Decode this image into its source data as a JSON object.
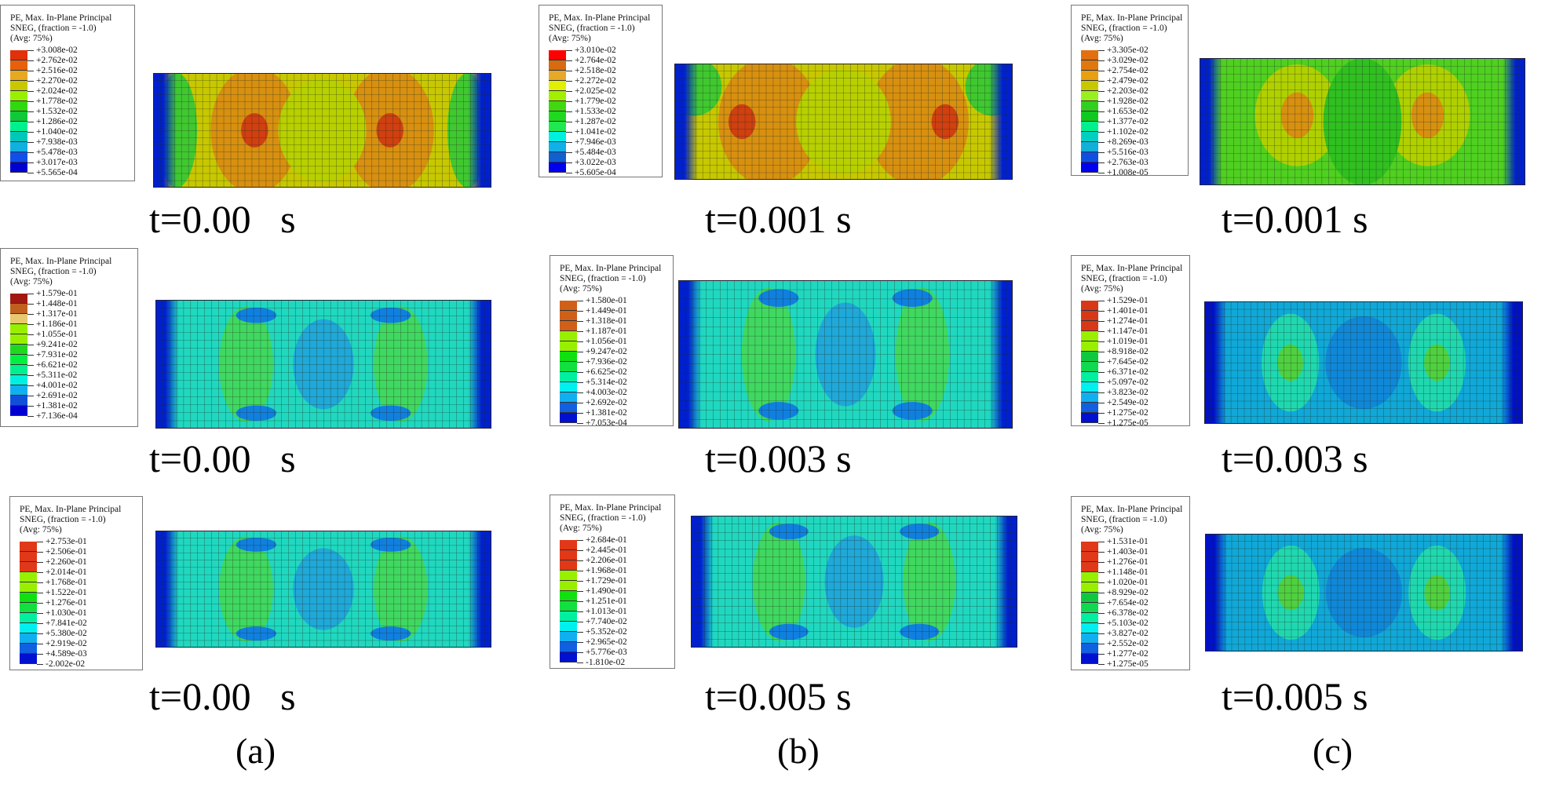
{
  "legend_title_lines": [
    "PE, Max. In-Plane Principal",
    "SNEG, (fraction = -1.0)",
    "(Avg: 75%)"
  ],
  "column_labels": [
    "(a)",
    "(b)",
    "(c)"
  ],
  "panels": [
    {
      "caption": "t=0.00   s",
      "values": [
        "+3.008e-02",
        "+2.762e-02",
        "+2.516e-02",
        "+2.270e-02",
        "+2.024e-02",
        "+1.778e-02",
        "+1.532e-02",
        "+1.286e-02",
        "+1.040e-02",
        "+7.938e-03",
        "+5.478e-03",
        "+3.017e-03",
        "+5.565e-04"
      ],
      "colors": [
        "#e0300c",
        "#e8600c",
        "#e8a820",
        "#c8c800",
        "#98f000",
        "#30d810",
        "#10c838",
        "#00f090",
        "#00c8b8",
        "#10b0e0",
        "#1050e8",
        "#0000d0"
      ]
    },
    {
      "caption": "t=0.001 s",
      "values": [
        "+3.010e-02",
        "+2.764e-02",
        "+2.518e-02",
        "+2.272e-02",
        "+2.025e-02",
        "+1.779e-02",
        "+1.533e-02",
        "+1.287e-02",
        "+1.041e-02",
        "+7.946e-03",
        "+5.484e-03",
        "+3.022e-03",
        "+5.605e-04"
      ],
      "colors": [
        "#ff0000",
        "#d86a10",
        "#e8a828",
        "#e0f000",
        "#a0f000",
        "#40d810",
        "#20d820",
        "#20e850",
        "#00f0e0",
        "#10b0e8",
        "#1060d0",
        "#0000f0"
      ]
    },
    {
      "caption": "t=0.001 s",
      "values": [
        "+3.305e-02",
        "+3.029e-02",
        "+2.754e-02",
        "+2.479e-02",
        "+2.203e-02",
        "+1.928e-02",
        "+1.653e-02",
        "+1.377e-02",
        "+1.102e-02",
        "+8.269e-03",
        "+5.516e-03",
        "+2.763e-03",
        "+1.008e-05"
      ],
      "colors": [
        "#e07010",
        "#e07810",
        "#e8a010",
        "#c8c800",
        "#98f020",
        "#30d020",
        "#10c820",
        "#00f090",
        "#00d0c0",
        "#10b0d8",
        "#1050e0",
        "#0000f0"
      ]
    },
    {
      "caption": "t=0.00   s",
      "values": [
        "+1.579e-01",
        "+1.448e-01",
        "+1.317e-01",
        "+1.186e-01",
        "+1.055e-01",
        "+9.241e-02",
        "+7.931e-02",
        "+6.621e-02",
        "+5.311e-02",
        "+4.001e-02",
        "+2.691e-02",
        "+1.381e-02",
        "+7.136e-04"
      ],
      "colors": [
        "#a01810",
        "#c06020",
        "#e8c870",
        "#98f000",
        "#98f000",
        "#20d820",
        "#00f040",
        "#00f090",
        "#00f0e0",
        "#10b0f0",
        "#1050d8",
        "#0000d0"
      ]
    },
    {
      "caption": "t=0.003 s",
      "values": [
        "+1.580e-01",
        "+1.449e-01",
        "+1.318e-01",
        "+1.187e-01",
        "+1.056e-01",
        "+9.247e-02",
        "+7.936e-02",
        "+6.625e-02",
        "+5.314e-02",
        "+4.003e-02",
        "+2.692e-02",
        "+1.381e-02",
        "+7.053e-04"
      ],
      "colors": [
        "#d06018",
        "#d06018",
        "#d06018",
        "#98f000",
        "#98f000",
        "#10e010",
        "#10e040",
        "#00f0a0",
        "#00f0f0",
        "#10b0f0",
        "#1060e0",
        "#0010d0"
      ]
    },
    {
      "caption": "t=0.003 s",
      "values": [
        "+1.529e-01",
        "+1.401e-01",
        "+1.274e-01",
        "+1.147e-01",
        "+1.019e-01",
        "+8.918e-02",
        "+7.645e-02",
        "+6.371e-02",
        "+5.097e-02",
        "+3.823e-02",
        "+2.549e-02",
        "+1.275e-02",
        "+1.275e-05"
      ],
      "colors": [
        "#d83818",
        "#d83818",
        "#d83818",
        "#98f000",
        "#98f000",
        "#10c840",
        "#10d850",
        "#00f0a0",
        "#00f0f0",
        "#10b0f0",
        "#1060e0",
        "#0010d0"
      ]
    },
    {
      "caption": "t=0.00   s",
      "values": [
        "+2.753e-01",
        "+2.506e-01",
        "+2.260e-01",
        "+2.014e-01",
        "+1.768e-01",
        "+1.522e-01",
        "+1.276e-01",
        "+1.030e-01",
        "+7.841e-02",
        "+5.380e-02",
        "+2.919e-02",
        "+4.589e-03",
        "-2.002e-02"
      ],
      "colors": [
        "#e03818",
        "#e03818",
        "#e03818",
        "#98f000",
        "#98f000",
        "#10e010",
        "#10e040",
        "#00f0a0",
        "#00f0f0",
        "#10b0f0",
        "#1060e0",
        "#0010d0"
      ]
    },
    {
      "caption": "t=0.005 s",
      "values": [
        "+2.684e-01",
        "+2.445e-01",
        "+2.206e-01",
        "+1.968e-01",
        "+1.729e-01",
        "+1.490e-01",
        "+1.251e-01",
        "+1.013e-01",
        "+7.740e-02",
        "+5.352e-02",
        "+2.965e-02",
        "+5.776e-03",
        "-1.810e-02"
      ],
      "colors": [
        "#e03818",
        "#e03818",
        "#e03818",
        "#98f000",
        "#98f000",
        "#10e010",
        "#10e040",
        "#00f0a0",
        "#00f0f0",
        "#10b0f0",
        "#1060e0",
        "#0010d0"
      ]
    },
    {
      "caption": "t=0.005 s",
      "values": [
        "+1.531e-01",
        "+1.403e-01",
        "+1.276e-01",
        "+1.148e-01",
        "+1.020e-01",
        "+8.929e-02",
        "+7.654e-02",
        "+6.378e-02",
        "+5.103e-02",
        "+3.827e-02",
        "+2.552e-02",
        "+1.277e-02",
        "+1.275e-05"
      ],
      "colors": [
        "#e03818",
        "#e03818",
        "#e03818",
        "#98f000",
        "#98f000",
        "#10c840",
        "#10d850",
        "#00f0a0",
        "#00f0f0",
        "#10b0f0",
        "#1060e0",
        "#0010d0"
      ]
    }
  ]
}
